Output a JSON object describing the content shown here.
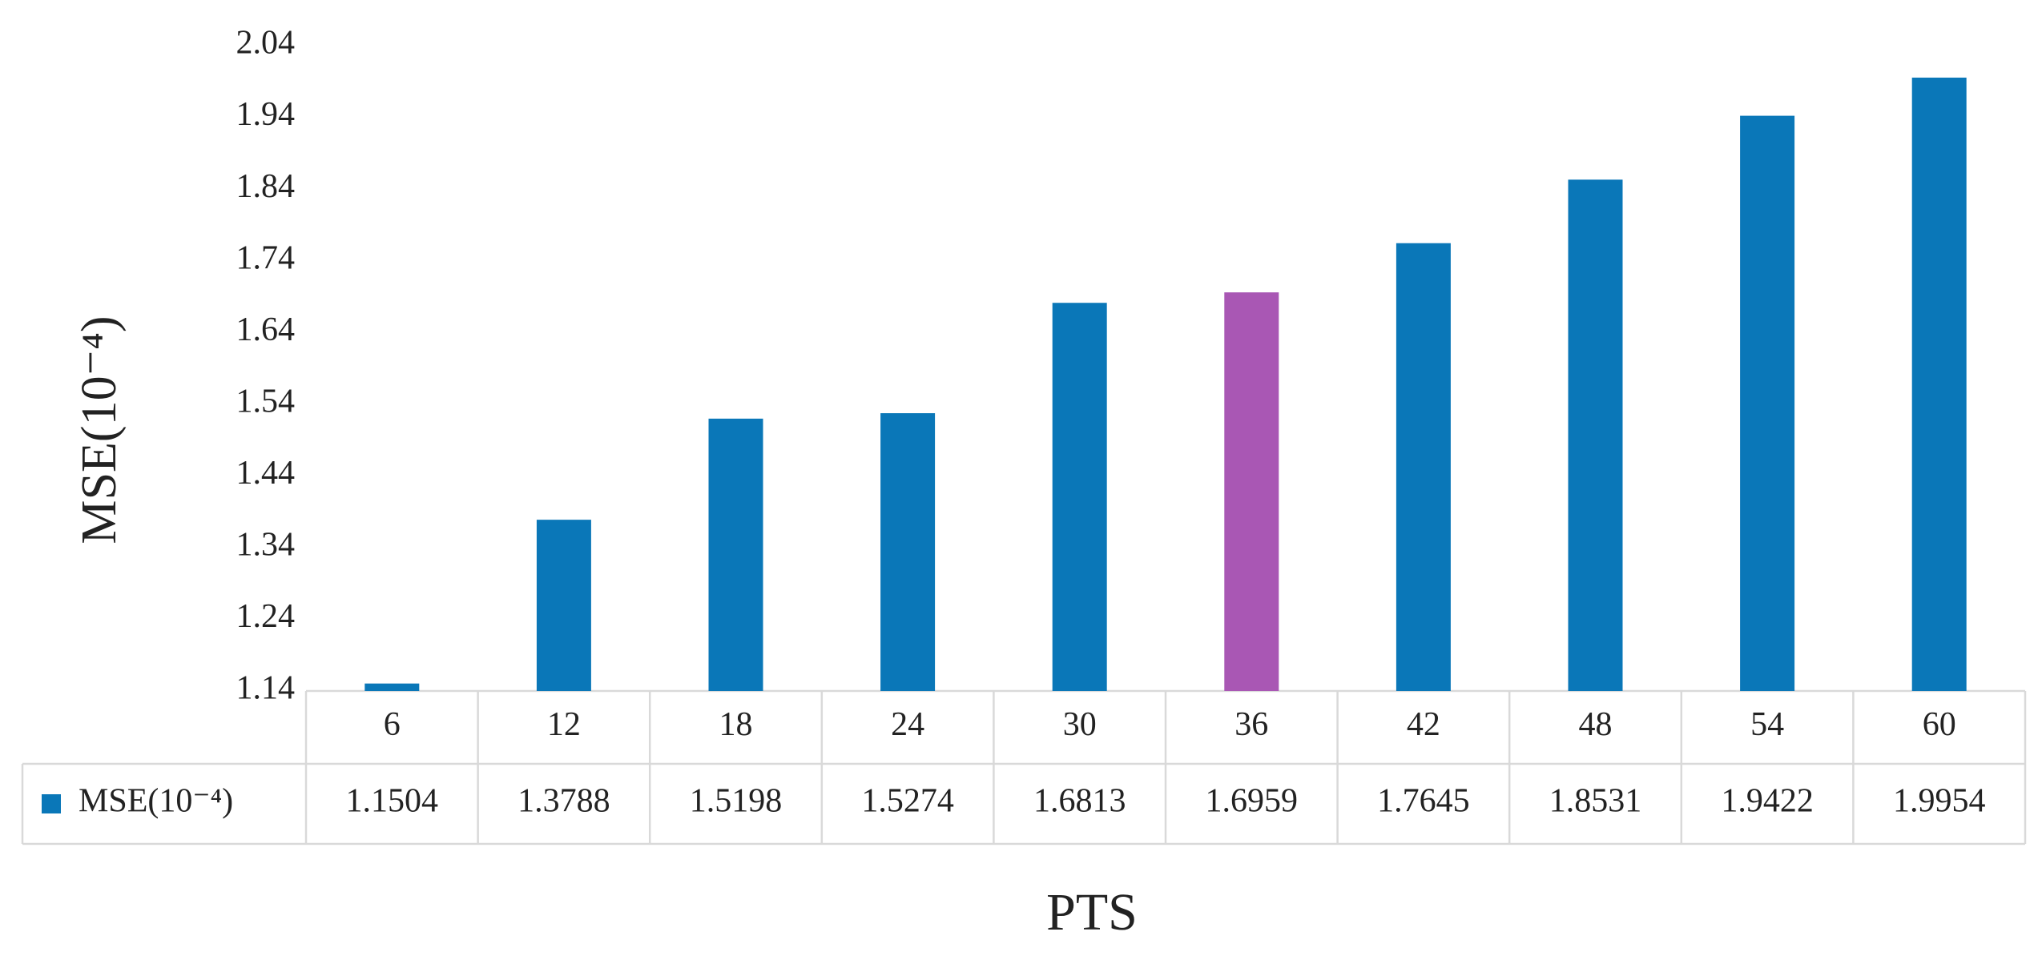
{
  "chart_data": {
    "type": "bar",
    "x_label": "PTS",
    "y_label": "MSE(10⁻⁴)",
    "categories": [
      "6",
      "12",
      "18",
      "24",
      "30",
      "36",
      "42",
      "48",
      "54",
      "60"
    ],
    "series": [
      {
        "name": "MSE(10⁻⁴)",
        "color": "#0a77b8",
        "values": [
          1.1504,
          1.3788,
          1.5198,
          1.5274,
          1.6813,
          1.6959,
          1.7645,
          1.8531,
          1.9422,
          1.9954
        ],
        "colors": [
          "#0a77b8",
          "#0a77b8",
          "#0a77b8",
          "#0a77b8",
          "#0a77b8",
          "#a957b4",
          "#0a77b8",
          "#0a77b8",
          "#0a77b8",
          "#0a77b8"
        ]
      }
    ],
    "ylim": [
      1.14,
      2.04
    ],
    "yticks": [
      1.14,
      1.24,
      1.34,
      1.44,
      1.54,
      1.64,
      1.74,
      1.84,
      1.94,
      2.04
    ],
    "grid": false,
    "data_table": true
  }
}
